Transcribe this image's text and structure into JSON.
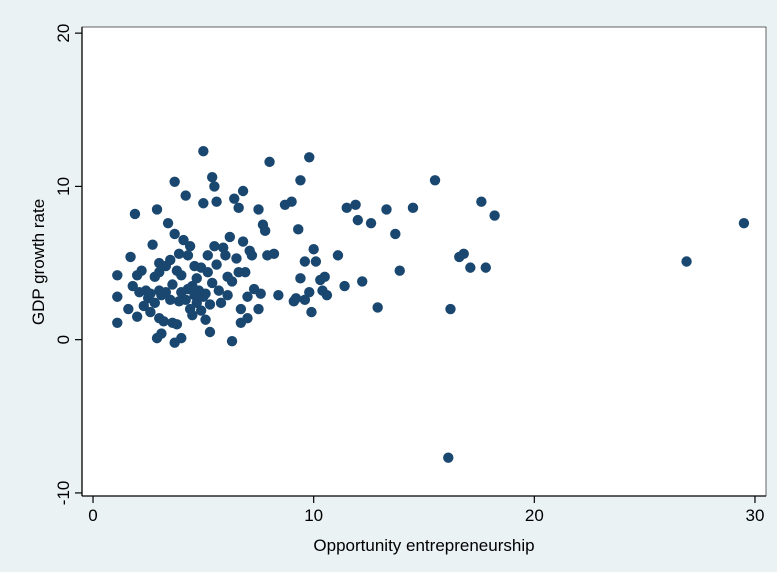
{
  "chart_data": {
    "type": "scatter",
    "title": "",
    "xlabel": "Opportunity entrepreneurship",
    "ylabel": "GDP growth rate",
    "xlim": [
      -0.5,
      30.5
    ],
    "ylim": [
      -10.2,
      20.4
    ],
    "xticks": [
      0,
      10,
      20,
      30
    ],
    "yticks": [
      -10,
      0,
      10,
      20
    ],
    "grid": false,
    "legend": "none",
    "colors": {
      "background": "#eaf2f3",
      "plot_area": "#ffffff",
      "marker": "#1a476f",
      "axis": "#000000"
    },
    "series": [
      {
        "points": [
          [
            1.1,
            4.2
          ],
          [
            1.1,
            2.8
          ],
          [
            1.1,
            1.1
          ],
          [
            1.6,
            2.0
          ],
          [
            1.7,
            5.4
          ],
          [
            1.8,
            3.5
          ],
          [
            1.9,
            8.2
          ],
          [
            2.0,
            4.2
          ],
          [
            2.0,
            1.5
          ],
          [
            2.1,
            3.1
          ],
          [
            2.2,
            4.5
          ],
          [
            2.3,
            2.2
          ],
          [
            2.4,
            3.2
          ],
          [
            2.5,
            2.7
          ],
          [
            2.6,
            1.8
          ],
          [
            2.6,
            3.0
          ],
          [
            2.7,
            6.2
          ],
          [
            2.8,
            4.1
          ],
          [
            2.8,
            2.4
          ],
          [
            2.9,
            8.5
          ],
          [
            2.9,
            0.1
          ],
          [
            3.0,
            5.0
          ],
          [
            3.0,
            4.4
          ],
          [
            3.0,
            3.2
          ],
          [
            3.0,
            1.4
          ],
          [
            3.1,
            2.9
          ],
          [
            3.1,
            0.4
          ],
          [
            3.2,
            1.2
          ],
          [
            3.3,
            3.1
          ],
          [
            3.3,
            4.8
          ],
          [
            3.4,
            7.6
          ],
          [
            3.5,
            2.6
          ],
          [
            3.5,
            5.2
          ],
          [
            3.6,
            1.1
          ],
          [
            3.6,
            3.6
          ],
          [
            3.7,
            10.3
          ],
          [
            3.7,
            6.9
          ],
          [
            3.7,
            -0.2
          ],
          [
            3.8,
            4.5
          ],
          [
            3.8,
            1.0
          ],
          [
            3.9,
            2.5
          ],
          [
            3.9,
            5.6
          ],
          [
            4.0,
            0.1
          ],
          [
            4.0,
            3.1
          ],
          [
            4.0,
            4.2
          ],
          [
            4.1,
            6.5
          ],
          [
            4.2,
            9.4
          ],
          [
            4.2,
            2.6
          ],
          [
            4.3,
            5.5
          ],
          [
            4.3,
            3.3
          ],
          [
            4.4,
            6.1
          ],
          [
            4.4,
            2.0
          ],
          [
            4.5,
            3.5
          ],
          [
            4.5,
            1.6
          ],
          [
            4.6,
            4.8
          ],
          [
            4.6,
            2.9
          ],
          [
            4.7,
            4.0
          ],
          [
            4.7,
            2.4
          ],
          [
            4.8,
            3.2
          ],
          [
            4.9,
            1.9
          ],
          [
            4.9,
            4.7
          ],
          [
            5.0,
            2.8
          ],
          [
            5.0,
            12.3
          ],
          [
            5.0,
            8.9
          ],
          [
            5.1,
            3.0
          ],
          [
            5.1,
            1.3
          ],
          [
            5.2,
            4.4
          ],
          [
            5.2,
            5.5
          ],
          [
            5.3,
            2.3
          ],
          [
            5.3,
            0.5
          ],
          [
            5.4,
            10.6
          ],
          [
            5.4,
            3.7
          ],
          [
            5.5,
            10.0
          ],
          [
            5.5,
            6.1
          ],
          [
            5.6,
            9.0
          ],
          [
            5.6,
            4.9
          ],
          [
            5.7,
            3.2
          ],
          [
            5.8,
            2.4
          ],
          [
            5.9,
            6.0
          ],
          [
            6.0,
            5.5
          ],
          [
            6.1,
            4.1
          ],
          [
            6.1,
            2.9
          ],
          [
            6.2,
            6.7
          ],
          [
            6.3,
            3.8
          ],
          [
            6.3,
            -0.1
          ],
          [
            6.4,
            9.2
          ],
          [
            6.5,
            5.3
          ],
          [
            6.6,
            8.6
          ],
          [
            6.6,
            4.4
          ],
          [
            6.7,
            1.1
          ],
          [
            6.7,
            2.0
          ],
          [
            6.8,
            9.7
          ],
          [
            6.8,
            6.4
          ],
          [
            6.9,
            4.4
          ],
          [
            7.0,
            1.4
          ],
          [
            7.0,
            2.8
          ],
          [
            7.1,
            5.8
          ],
          [
            7.2,
            5.5
          ],
          [
            7.3,
            3.3
          ],
          [
            7.5,
            2.0
          ],
          [
            7.5,
            8.5
          ],
          [
            7.6,
            3.0
          ],
          [
            7.7,
            7.5
          ],
          [
            7.8,
            7.1
          ],
          [
            7.9,
            5.5
          ],
          [
            8.0,
            11.6
          ],
          [
            8.2,
            5.6
          ],
          [
            8.4,
            2.9
          ],
          [
            8.7,
            8.8
          ],
          [
            9.0,
            9.0
          ],
          [
            9.1,
            2.5
          ],
          [
            9.2,
            2.7
          ],
          [
            9.3,
            7.2
          ],
          [
            9.4,
            4.0
          ],
          [
            9.4,
            10.4
          ],
          [
            9.6,
            5.1
          ],
          [
            9.6,
            2.6
          ],
          [
            9.8,
            11.9
          ],
          [
            9.8,
            3.1
          ],
          [
            9.9,
            1.8
          ],
          [
            10.0,
            5.9
          ],
          [
            10.1,
            5.1
          ],
          [
            10.3,
            3.9
          ],
          [
            10.4,
            3.2
          ],
          [
            10.5,
            4.1
          ],
          [
            10.6,
            2.9
          ],
          [
            11.1,
            5.5
          ],
          [
            11.4,
            3.5
          ],
          [
            11.5,
            8.6
          ],
          [
            11.9,
            8.8
          ],
          [
            12.0,
            7.8
          ],
          [
            12.2,
            3.8
          ],
          [
            12.6,
            7.6
          ],
          [
            12.9,
            2.1
          ],
          [
            13.3,
            8.5
          ],
          [
            13.7,
            6.9
          ],
          [
            13.9,
            4.5
          ],
          [
            14.5,
            8.6
          ],
          [
            15.5,
            10.4
          ],
          [
            16.1,
            -7.7
          ],
          [
            16.2,
            2.0
          ],
          [
            16.6,
            5.4
          ],
          [
            16.8,
            5.6
          ],
          [
            17.1,
            4.7
          ],
          [
            17.6,
            9.0
          ],
          [
            17.8,
            4.7
          ],
          [
            18.2,
            8.1
          ],
          [
            26.9,
            5.1
          ],
          [
            29.5,
            7.6
          ]
        ]
      }
    ]
  }
}
